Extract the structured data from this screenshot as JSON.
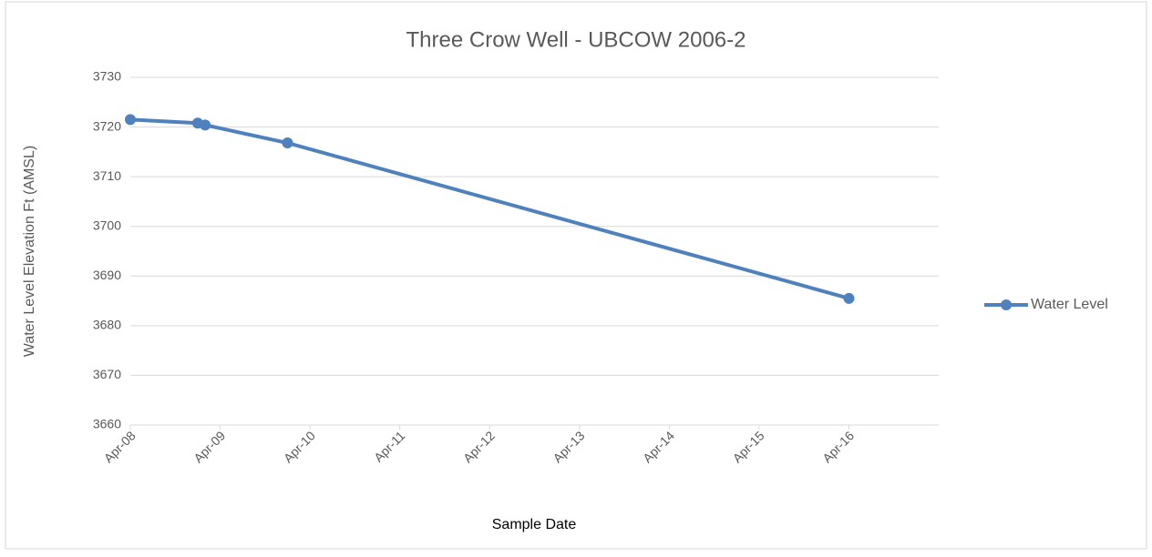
{
  "chart_data": {
    "type": "line",
    "title": "Three Crow Well - UBCOW 2006-2",
    "x_label": "Sample Date",
    "y_label": "Water Level Elevation Ft (AMSL)",
    "x": [
      "2008-04",
      "2009-01",
      "2009-02",
      "2010-01",
      "2016-04"
    ],
    "series": [
      {
        "name": "Water Level",
        "color": "#4f81bd",
        "values": [
          3721.5,
          3720.8,
          3720.4,
          3716.8,
          3685.5
        ]
      }
    ],
    "xlim": [
      "2008-04",
      "2017-04"
    ],
    "xticks": [
      {
        "value": "2008-04",
        "label": "Apr-08"
      },
      {
        "value": "2009-04",
        "label": "Apr-09"
      },
      {
        "value": "2010-04",
        "label": "Apr-10"
      },
      {
        "value": "2011-04",
        "label": "Apr-11"
      },
      {
        "value": "2012-04",
        "label": "Apr-12"
      },
      {
        "value": "2013-04",
        "label": "Apr-13"
      },
      {
        "value": "2014-04",
        "label": "Apr-14"
      },
      {
        "value": "2015-04",
        "label": "Apr-15"
      },
      {
        "value": "2016-04",
        "label": "Apr-16"
      }
    ],
    "ylim": [
      3660,
      3730
    ],
    "yticks": [
      3660,
      3670,
      3680,
      3690,
      3700,
      3710,
      3720,
      3730
    ],
    "grid": true,
    "legend": "right"
  }
}
